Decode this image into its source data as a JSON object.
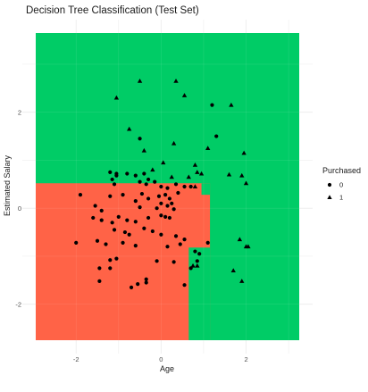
{
  "chart_data": {
    "type": "scatter",
    "title": "Decision Tree Classification (Test Set)",
    "xlabel": "Age",
    "ylabel": "Estimated Salary",
    "xlim": [
      -2.95,
      3.25
    ],
    "ylim": [
      -2.75,
      3.65
    ],
    "x_ticks": [
      -2,
      0,
      2
    ],
    "y_ticks": [
      -2,
      0,
      2
    ],
    "x_tick_labels": [
      "-2",
      "0",
      "2"
    ],
    "y_tick_labels": [
      "-2",
      "0",
      "2"
    ],
    "grid": true,
    "legend": {
      "title": "Purchased",
      "position": "right",
      "entries": [
        {
          "label": "0",
          "shape": "circle"
        },
        {
          "label": "1",
          "shape": "triangle"
        }
      ]
    },
    "regions": [
      {
        "class": "1",
        "color": "#00CC66",
        "xmin": -2.95,
        "xmax": 3.25,
        "ymin": -2.75,
        "ymax": 3.65
      },
      {
        "class": "0",
        "color": "#FF6347",
        "xmin": -2.95,
        "xmax": 1.15,
        "ymin": -2.75,
        "ymax": 0.52
      },
      {
        "class": "1",
        "color": "#00CC66",
        "xmin": 0.95,
        "xmax": 1.15,
        "ymin": 0.28,
        "ymax": 0.52
      },
      {
        "class": "1",
        "color": "#00CC66",
        "xmin": 0.65,
        "xmax": 1.15,
        "ymin": -2.75,
        "ymax": -0.82
      }
    ],
    "series": [
      {
        "name": "0",
        "marker": "circle",
        "points": [
          [
            1.2,
            2.15
          ],
          [
            1.3,
            1.5
          ],
          [
            -0.5,
            1.45
          ],
          [
            -1.2,
            0.75
          ],
          [
            -1.05,
            0.72
          ],
          [
            -1.05,
            0.68
          ],
          [
            -0.8,
            0.72
          ],
          [
            -0.6,
            0.68
          ],
          [
            -0.4,
            0.72
          ],
          [
            -1.15,
            0.6
          ],
          [
            -1.1,
            0.5
          ],
          [
            -0.5,
            0.55
          ],
          [
            -0.35,
            0.5
          ],
          [
            -0.3,
            0.6
          ],
          [
            -0.15,
            0.55
          ],
          [
            0.0,
            0.45
          ],
          [
            0.15,
            0.42
          ],
          [
            0.35,
            0.5
          ],
          [
            0.55,
            0.45
          ],
          [
            0.7,
            0.45
          ],
          [
            -1.9,
            0.28
          ],
          [
            -1.2,
            0.25
          ],
          [
            -0.9,
            0.28
          ],
          [
            -0.45,
            0.3
          ],
          [
            -0.3,
            0.2
          ],
          [
            -0.05,
            0.25
          ],
          [
            0.1,
            0.28
          ],
          [
            0.2,
            0.2
          ],
          [
            0.4,
            0.32
          ],
          [
            -0.6,
            0.15
          ],
          [
            0.0,
            0.1
          ],
          [
            0.15,
            0.05
          ],
          [
            0.25,
            0.1
          ],
          [
            -1.55,
            0.05
          ],
          [
            -1.4,
            -0.05
          ],
          [
            -0.5,
            0.02
          ],
          [
            -0.1,
            0.0
          ],
          [
            0.3,
            -0.02
          ],
          [
            -1.6,
            -0.2
          ],
          [
            -1.4,
            -0.25
          ],
          [
            -1.15,
            -0.3
          ],
          [
            -1.0,
            -0.18
          ],
          [
            -0.8,
            -0.25
          ],
          [
            -0.6,
            -0.28
          ],
          [
            -0.3,
            -0.2
          ],
          [
            0.0,
            -0.15
          ],
          [
            0.1,
            -0.18
          ],
          [
            0.2,
            -0.2
          ],
          [
            -1.1,
            -0.45
          ],
          [
            -0.85,
            -0.5
          ],
          [
            -0.75,
            -0.55
          ],
          [
            -0.4,
            -0.42
          ],
          [
            -0.2,
            -0.48
          ],
          [
            0.0,
            -0.55
          ],
          [
            0.35,
            -0.58
          ],
          [
            0.55,
            -0.65
          ],
          [
            1.1,
            -0.72
          ],
          [
            -2.0,
            -0.72
          ],
          [
            -1.5,
            -0.68
          ],
          [
            -1.3,
            -0.75
          ],
          [
            -0.9,
            -0.72
          ],
          [
            -0.6,
            -0.78
          ],
          [
            0.15,
            -0.8
          ],
          [
            0.45,
            -0.75
          ],
          [
            0.8,
            -0.9
          ],
          [
            0.9,
            -0.95
          ],
          [
            -1.2,
            -1.08
          ],
          [
            -1.05,
            -1.05
          ],
          [
            -0.1,
            -1.1
          ],
          [
            0.3,
            -1.12
          ],
          [
            0.85,
            -1.1
          ],
          [
            -1.45,
            -1.25
          ],
          [
            -1.2,
            -1.25
          ],
          [
            0.7,
            -1.25
          ],
          [
            -0.35,
            -1.48
          ],
          [
            -0.55,
            -1.58
          ],
          [
            -0.7,
            -1.65
          ],
          [
            -1.45,
            -1.52
          ],
          [
            -0.35,
            -1.55
          ],
          [
            0.55,
            -1.6
          ]
        ]
      },
      {
        "name": "1",
        "marker": "triangle",
        "points": [
          [
            -0.5,
            2.65
          ],
          [
            0.35,
            2.65
          ],
          [
            0.55,
            2.35
          ],
          [
            -1.05,
            2.3
          ],
          [
            1.65,
            2.15
          ],
          [
            -0.75,
            1.65
          ],
          [
            0.3,
            1.35
          ],
          [
            -0.4,
            1.2
          ],
          [
            1.1,
            1.25
          ],
          [
            1.95,
            1.15
          ],
          [
            0.05,
            0.95
          ],
          [
            0.8,
            0.9
          ],
          [
            -0.2,
            0.8
          ],
          [
            0.85,
            0.75
          ],
          [
            0.95,
            0.72
          ],
          [
            1.6,
            0.7
          ],
          [
            1.9,
            0.68
          ],
          [
            0.25,
            0.65
          ],
          [
            0.65,
            0.65
          ],
          [
            2.0,
            0.52
          ],
          [
            0.8,
            0.45
          ],
          [
            1.85,
            -0.65
          ],
          [
            2.0,
            -0.8
          ],
          [
            2.05,
            -0.8
          ],
          [
            0.75,
            -1.2
          ],
          [
            0.85,
            -1.2
          ],
          [
            1.7,
            -1.3
          ],
          [
            1.9,
            -1.52
          ]
        ]
      }
    ]
  }
}
